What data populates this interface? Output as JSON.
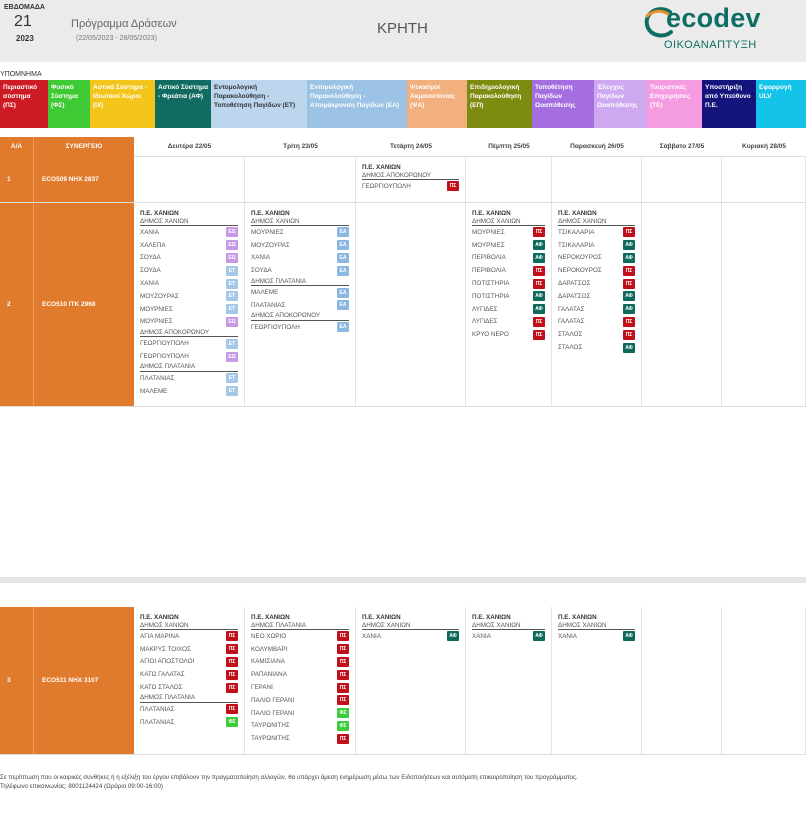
{
  "header": {
    "week_label": "ΕΒΔΟΜΑΔΑ",
    "week_number": "21",
    "year": "2023",
    "program_title": "Πρόγραμμα Δράσεων",
    "program_dates": "(22/05/2023 - 28/05/2023)",
    "region": "ΚΡΗΤΗ",
    "logo_text": "ecodev",
    "logo_subtitle": "ΟΙΚΟΑΝΑΠΤΥΞΗ"
  },
  "legend": {
    "title": "ΥΠΟΜΝΗΜΑ",
    "items": [
      {
        "label": "Περιαστικό σύστημα (ΠΣ)",
        "bg": "#cc1b24",
        "fg": "#ffffff"
      },
      {
        "label": "Φυσικό Σύστημα (ΦΣ)",
        "bg": "#3fca35",
        "fg": "#ffffff"
      },
      {
        "label": "Αστικά Σύστημα - Ιδιωτικοί Χώροι (ΙΧ)",
        "bg": "#f3c51a",
        "fg": "#ffffff"
      },
      {
        "label": "Αστικό Σύστημα - Φρεάτια (ΑΦ)",
        "bg": "#116b60",
        "fg": "#ffffff"
      },
      {
        "label": "Εντομολογική Παρακολούθηση - Τοποθέτηση Παγίδων (ΕΤ)",
        "bg": "#bcd6ee",
        "fg": "#333333"
      },
      {
        "label": "Εντομολογική Παρακολούθηση - Απομάκρυνση Παγίδων (ΕΑ)",
        "bg": "#9cc2e5",
        "fg": "#ffffff"
      },
      {
        "label": "Ψεκασμοί Ακμαιοκτονίας (ΨΑ)",
        "bg": "#f2b07e",
        "fg": "#ffffff"
      },
      {
        "label": "Επιδημιολογική Παρακολούθηση (ΕΠ)",
        "bg": "#7e8b11",
        "fg": "#ffffff"
      },
      {
        "label": "Τοποθέτηση Παγίδων Ωοαπόθεσης",
        "bg": "#a56ee0",
        "fg": "#ffffff"
      },
      {
        "label": "Έλεγχος Παγίδων Ωοαπόθεσης",
        "bg": "#cfa9f0",
        "fg": "#ffffff"
      },
      {
        "label": "Τουριστικές Επιχειρήσεις (ΤΕ)",
        "bg": "#f59be0",
        "fg": "#ffffff"
      },
      {
        "label": "Υποστήριξη από Υπεύθυνο Π.Ε.",
        "bg": "#14147d",
        "fg": "#ffffff"
      },
      {
        "label": "Εφαρμογή ULV",
        "bg": "#14c3e8",
        "fg": "#ffffff"
      }
    ]
  },
  "table": {
    "col_aa": "Α/Α",
    "col_vehicle": "ΣΥΝΕΡΓΕΙΟ",
    "days": [
      "Δευτέρα 22/05",
      "Τρίτη 23/05",
      "Τετάρτη 24/05",
      "Πέμπτη 25/05",
      "Παρασκευή 26/05",
      "Σάββατο 27/05",
      "Κυριακή 28/05"
    ],
    "rows": [
      {
        "aa": "1",
        "vehicle": "ECO509  ΝΗΧ 2837",
        "days": [
          [],
          [],
          [
            {
              "t": "pe",
              "text": "Π.Ε. ΧΑΝΙΩΝ"
            },
            {
              "t": "dim",
              "text": "ΔΗΜΟΣ ΑΠΟΚΟΡΩΝΟΥ"
            },
            {
              "t": "loc",
              "text": "ΓΕΩΡΓΙΟΥΠΟΛΗ",
              "b": "ΠΣ"
            }
          ],
          [],
          [],
          [],
          []
        ]
      },
      {
        "aa": "2",
        "vehicle": "ECO510  ΙΤΚ 2968",
        "days": [
          [
            {
              "t": "pe",
              "text": "Π.Ε. ΧΑΝΙΩΝ"
            },
            {
              "t": "dim",
              "text": "ΔΗΜΟΣ ΧΑΝΙΩΝ"
            },
            {
              "t": "loc",
              "text": "ΧΑΝΙΑ",
              "b": "ΕΩ"
            },
            {
              "t": "loc",
              "text": "ΧΑΛΕΠΑ",
              "b": "ΕΩ"
            },
            {
              "t": "loc",
              "text": "ΣΟΥΔΑ",
              "b": "ΕΩ"
            },
            {
              "t": "loc",
              "text": "ΣΟΥΔΑ",
              "b": "ΕΤ"
            },
            {
              "t": "loc",
              "text": "ΧΑΝΙΑ",
              "b": "ΕΤ"
            },
            {
              "t": "loc",
              "text": "ΜΟΥΖΟΥΡΑΣ",
              "b": "ΕΤ"
            },
            {
              "t": "loc",
              "text": "ΜΟΥΡΝΙΕΣ",
              "b": "ΕΤ"
            },
            {
              "t": "loc",
              "text": "ΜΟΥΡΝΙΕΣ",
              "b": "ΕΩ"
            },
            {
              "t": "dim",
              "text": "ΔΗΜΟΣ ΑΠΟΚΟΡΩΝΟΥ"
            },
            {
              "t": "loc",
              "text": "ΓΕΩΡΓΙΟΥΠΟΛΗ",
              "b": "ΕΤ"
            },
            {
              "t": "loc",
              "text": "ΓΕΩΡΓΙΟΥΠΟΛΗ",
              "b": "ΕΩ"
            },
            {
              "t": "dim",
              "text": "ΔΗΜΟΣ ΠΛΑΤΑΝΙΑ"
            },
            {
              "t": "loc",
              "text": "ΠΛΑΤΑΝΙΑΣ",
              "b": "ΕΤ"
            },
            {
              "t": "loc",
              "text": "ΜΑΛΕΜΕ",
              "b": "ΕΤ"
            }
          ],
          [
            {
              "t": "pe",
              "text": "Π.Ε. ΧΑΝΙΩΝ"
            },
            {
              "t": "dim",
              "text": "ΔΗΜΟΣ ΧΑΝΙΩΝ"
            },
            {
              "t": "loc",
              "text": "ΜΟΥΡΝΙΕΣ",
              "b": "ΕΑ"
            },
            {
              "t": "loc",
              "text": "ΜΟΥΖΟΥΡΑΣ",
              "b": "ΕΑ"
            },
            {
              "t": "loc",
              "text": "ΧΑΝΙΑ",
              "b": "ΕΑ"
            },
            {
              "t": "loc",
              "text": "ΣΟΥΔΑ",
              "b": "ΕΑ"
            },
            {
              "t": "dim",
              "text": "ΔΗΜΟΣ ΠΛΑΤΑΝΙΑ"
            },
            {
              "t": "loc",
              "text": "ΜΑΛΕΜΕ",
              "b": "ΕΑ"
            },
            {
              "t": "loc",
              "text": "ΠΛΑΤΑΝΙΑΣ",
              "b": "ΕΑ"
            },
            {
              "t": "dim",
              "text": "ΔΗΜΟΣ ΑΠΟΚΟΡΩΝΟΥ"
            },
            {
              "t": "loc",
              "text": "ΓΕΩΡΓΙΟΥΠΟΛΗ",
              "b": "ΕΑ"
            }
          ],
          [],
          [
            {
              "t": "pe",
              "text": "Π.Ε. ΧΑΝΙΩΝ"
            },
            {
              "t": "dim",
              "text": "ΔΗΜΟΣ ΧΑΝΙΩΝ"
            },
            {
              "t": "loc",
              "text": "ΜΟΥΡΝΙΕΣ",
              "b": "ΠΣ"
            },
            {
              "t": "loc",
              "text": "ΜΟΥΡΝΙΕΣ",
              "b": "ΑΦ"
            },
            {
              "t": "loc",
              "text": "ΠΕΡΙΒΟΛΙΑ",
              "b": "ΑΦ"
            },
            {
              "t": "loc",
              "text": "ΠΕΡΙΒΟΛΙΑ",
              "b": "ΠΣ"
            },
            {
              "t": "loc",
              "text": "ΠΟΤΙΣΤΗΡΙΑ",
              "b": "ΠΣ"
            },
            {
              "t": "loc",
              "text": "ΠΟΤΙΣΤΗΡΙΑ",
              "b": "ΑΦ"
            },
            {
              "t": "loc",
              "text": "ΛΥΓΙΔΕΣ",
              "b": "ΑΦ"
            },
            {
              "t": "loc",
              "text": "ΛΥΓΙΔΕΣ",
              "b": "ΠΣ"
            },
            {
              "t": "loc",
              "text": "ΚΡΥΟ ΝΕΡΟ",
              "b": "ΠΣ"
            }
          ],
          [
            {
              "t": "pe",
              "text": "Π.Ε. ΧΑΝΙΩΝ"
            },
            {
              "t": "dim",
              "text": "ΔΗΜΟΣ ΧΑΝΙΩΝ"
            },
            {
              "t": "loc",
              "text": "ΤΣΙΚΑΛΑΡΙΑ",
              "b": "ΠΣ"
            },
            {
              "t": "loc",
              "text": "ΤΣΙΚΑΛΑΡΙΑ",
              "b": "ΑΦ"
            },
            {
              "t": "loc",
              "text": "ΝΕΡΟΚΟΥΡΟΣ",
              "b": "ΑΦ"
            },
            {
              "t": "loc",
              "text": "ΝΕΡΟΚΟΥΡΟΣ",
              "b": "ΠΣ"
            },
            {
              "t": "loc",
              "text": "ΔΑΡΑΤΣΟΣ",
              "b": "ΠΣ"
            },
            {
              "t": "loc",
              "text": "ΔΑΡΑΤΣΟΣ",
              "b": "ΑΦ"
            },
            {
              "t": "loc",
              "text": "ΓΑΛΑΤΑΣ",
              "b": "ΑΦ"
            },
            {
              "t": "loc",
              "text": "ΓΑΛΑΤΑΣ",
              "b": "ΠΣ"
            },
            {
              "t": "loc",
              "text": "ΣΤΑΛΟΣ",
              "b": "ΠΣ"
            },
            {
              "t": "loc",
              "text": "ΣΤΑΛΟΣ",
              "b": "ΑΦ"
            }
          ],
          [],
          []
        ]
      },
      {
        "aa": "3",
        "vehicle": "ECO511  ΝΗΧ 3107",
        "days": [
          [
            {
              "t": "pe",
              "text": "Π.Ε. ΧΑΝΙΩΝ"
            },
            {
              "t": "dim",
              "text": "ΔΗΜΟΣ ΧΑΝΙΩΝ"
            },
            {
              "t": "loc",
              "text": "ΑΓΙΑ ΜΑΡΙΝΑ",
              "b": "ΠΣ"
            },
            {
              "t": "loc",
              "text": "ΜΑΚΡΥΣ ΤΟΙΧΟΣ",
              "b": "ΠΣ"
            },
            {
              "t": "loc",
              "text": "ΑΓΙΟΙ ΑΠΟΣΤΟΛΟΙ",
              "b": "ΠΣ"
            },
            {
              "t": "loc",
              "text": "ΚΑΤΩ ΓΑΛΑΤΑΣ",
              "b": "ΠΣ"
            },
            {
              "t": "loc",
              "text": "ΚΑΤΩ ΣΤΑΛΟΣ",
              "b": "ΠΣ"
            },
            {
              "t": "dim",
              "text": "ΔΗΜΟΣ ΠΛΑΤΑΝΙΑ"
            },
            {
              "t": "loc",
              "text": "ΠΛΑΤΑΝΙΑΣ",
              "b": "ΠΣ"
            },
            {
              "t": "loc",
              "text": "ΠΛΑΤΑΝΙΑΣ",
              "b": "ΦΣ"
            }
          ],
          [
            {
              "t": "pe",
              "text": "Π.Ε. ΧΑΝΙΩΝ"
            },
            {
              "t": "dim",
              "text": "ΔΗΜΟΣ ΠΛΑΤΑΝΙΑ"
            },
            {
              "t": "loc",
              "text": "ΝΕΟ ΧΩΡΙΟ",
              "b": "ΠΣ"
            },
            {
              "t": "loc",
              "text": "ΚΟΛΥΜΒΑΡΙ",
              "b": "ΠΣ"
            },
            {
              "t": "loc",
              "text": "ΚΑΜΙΣΙΑΝΑ",
              "b": "ΠΣ"
            },
            {
              "t": "loc",
              "text": "ΡΑΠΑΝΙΑΝΑ",
              "b": "ΠΣ"
            },
            {
              "t": "loc",
              "text": "ΓΕΡΑΝΙ",
              "b": "ΠΣ"
            },
            {
              "t": "loc",
              "text": "ΠΑΛΙΟ ΓΕΡΑΝΙ",
              "b": "ΠΣ"
            },
            {
              "t": "loc",
              "text": "ΠΑΛΙΟ ΓΕΡΑΝΙ",
              "b": "ΦΣ"
            },
            {
              "t": "loc",
              "text": "ΤΑΥΡΩΝΙΤΗΣ",
              "b": "ΦΣ"
            },
            {
              "t": "loc",
              "text": "ΤΑΥΡΩΝΙΤΗΣ",
              "b": "ΠΣ"
            }
          ],
          [
            {
              "t": "pe",
              "text": "Π.Ε. ΧΑΝΙΩΝ"
            },
            {
              "t": "dim",
              "text": "ΔΗΜΟΣ ΧΑΝΙΩΝ"
            },
            {
              "t": "loc",
              "text": "ΧΑΝΙΑ",
              "b": "ΑΦ"
            }
          ],
          [
            {
              "t": "pe",
              "text": "Π.Ε. ΧΑΝΙΩΝ"
            },
            {
              "t": "dim",
              "text": "ΔΗΜΟΣ ΧΑΝΙΩΝ"
            },
            {
              "t": "loc",
              "text": "ΧΑΝΙΑ",
              "b": "ΑΦ"
            }
          ],
          [
            {
              "t": "pe",
              "text": "Π.Ε. ΧΑΝΙΩΝ"
            },
            {
              "t": "dim",
              "text": "ΔΗΜΟΣ ΧΑΝΙΩΝ"
            },
            {
              "t": "loc",
              "text": "ΧΑΝΙΑ",
              "b": "ΑΦ"
            }
          ],
          [],
          []
        ]
      }
    ]
  },
  "badge_colors": {
    "ΠΣ": "#c0111a",
    "ΑΦ": "#0e6a5c",
    "ΕΩ": "#c79ae8",
    "ΕΤ": "#a6c8e8",
    "ΕΑ": "#8ab8e0",
    "ΦΣ": "#3ecc3a"
  },
  "footer": {
    "note_line1": "Σε περίπτωση που οι καιρικές συνθήκες ή η εξέλιξη του έργου επιβάλουν την πραγματοποίηση αλλαγών, θα υπάρχει άμεση ενημέρωση μέσω των Ειδοποιήσεων και αυτόματη επικαιροποίηση του προγράμματος.",
    "note_line2": "Τηλέφωνο επικοινωνίας: 8001124424 (Ωράριο 09:00-16:00)"
  }
}
